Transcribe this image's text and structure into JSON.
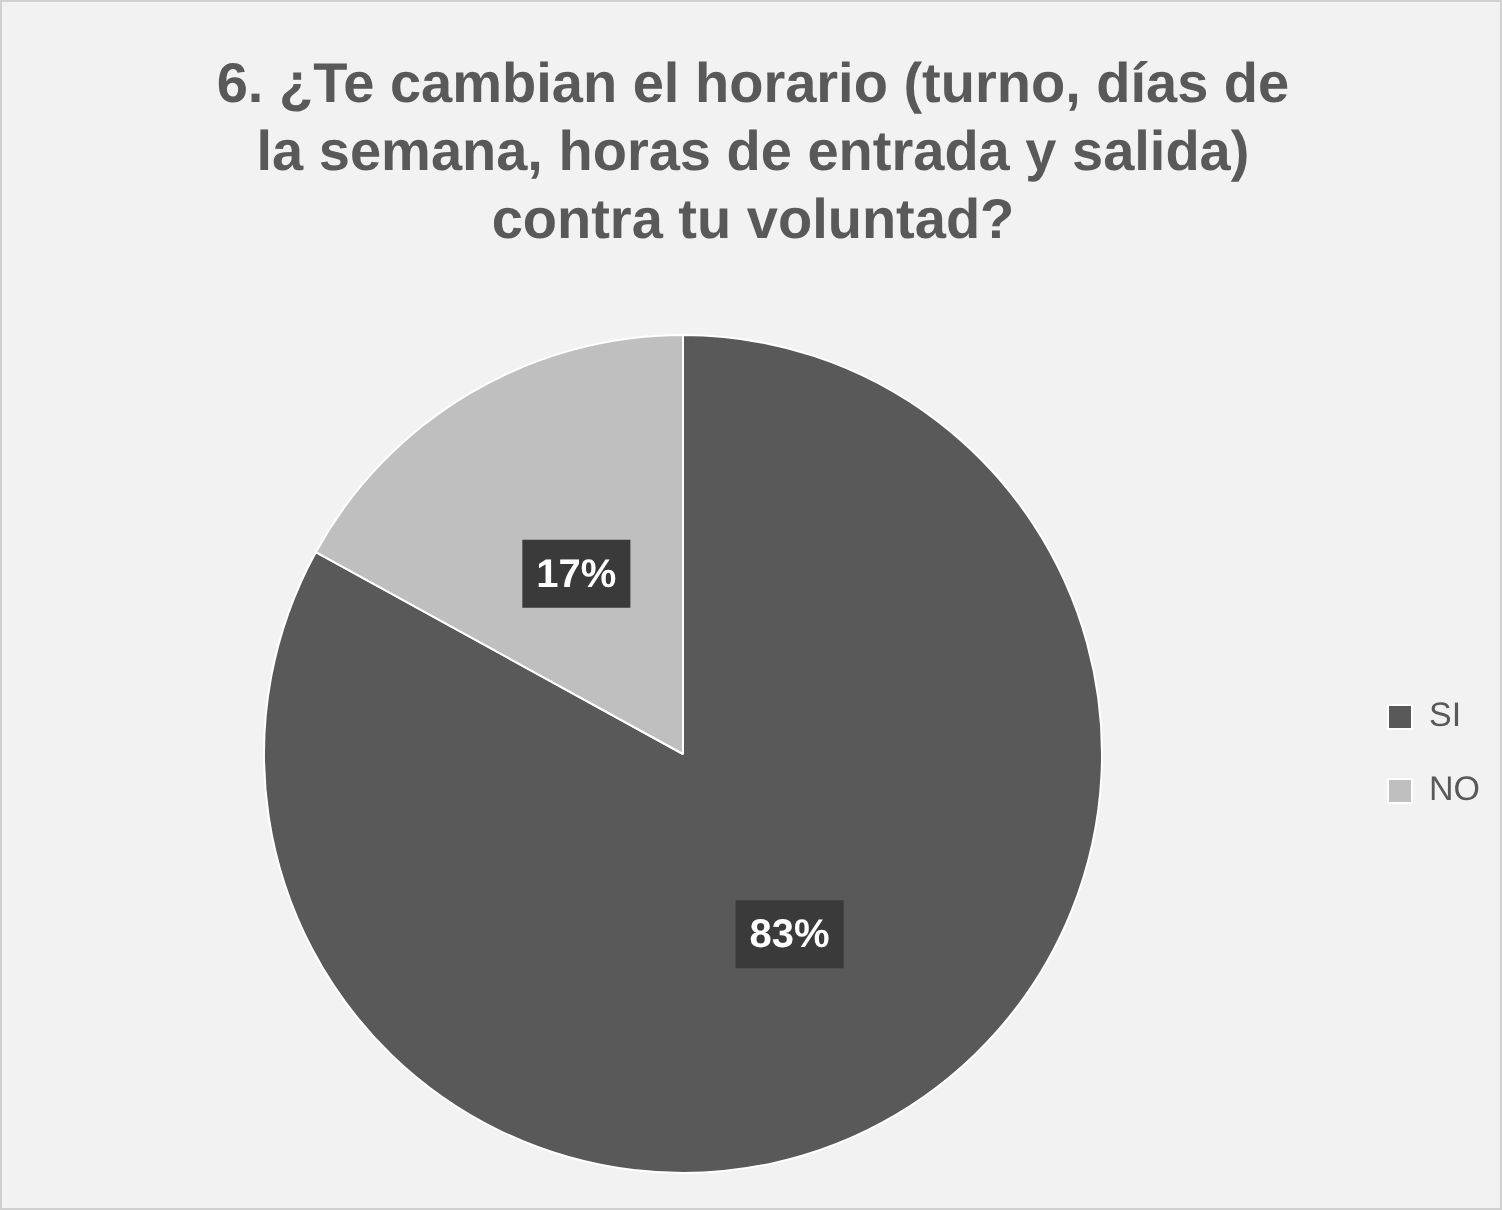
{
  "chart_data": {
    "type": "pie",
    "title": "6. ¿Te cambian el horario (turno, días de la semana, horas de entrada y salida) contra tu voluntad?",
    "categories": [
      "SI",
      "NO"
    ],
    "values": [
      83,
      17
    ],
    "colors": [
      "#595959",
      "#bfbfbf"
    ],
    "value_labels": [
      "83%",
      "17%"
    ],
    "legend": "right"
  }
}
